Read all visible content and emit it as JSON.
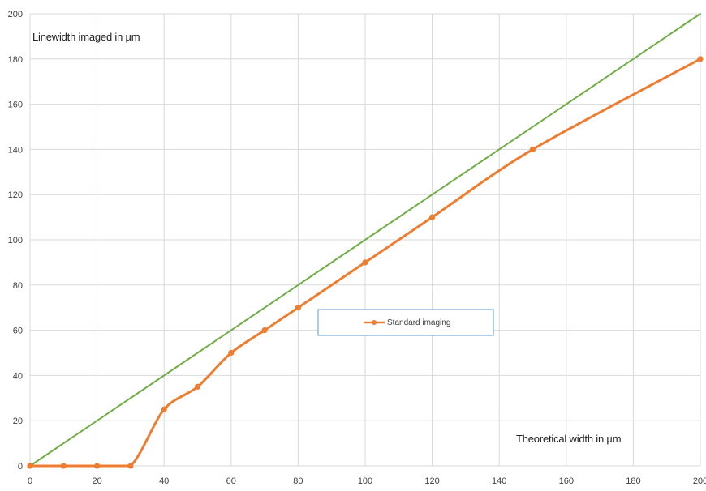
{
  "chart_data": {
    "type": "line",
    "title": "",
    "xlabel": "Theoretical width in µm",
    "ylabel": "Linewidth imaged in µm",
    "xlim": [
      0,
      200
    ],
    "ylim": [
      0,
      200
    ],
    "x_ticks": [
      0,
      20,
      40,
      60,
      80,
      100,
      120,
      140,
      160,
      180,
      200
    ],
    "y_ticks": [
      0,
      20,
      40,
      60,
      80,
      100,
      120,
      140,
      160,
      180,
      200
    ],
    "grid": true,
    "legend_position": "center",
    "series": [
      {
        "name": "Standard imaging",
        "color": "#ed7d31",
        "markers": true,
        "smooth": true,
        "x": [
          0,
          10,
          20,
          30,
          40,
          50,
          60,
          70,
          80,
          100,
          120,
          150,
          200
        ],
        "y": [
          0,
          0,
          0,
          0,
          25,
          35,
          50,
          60,
          70,
          90,
          110,
          140,
          180
        ]
      },
      {
        "name": "",
        "color": "#70ad47",
        "markers": false,
        "smooth": false,
        "x": [
          0,
          200
        ],
        "y": [
          0,
          200
        ]
      }
    ]
  }
}
